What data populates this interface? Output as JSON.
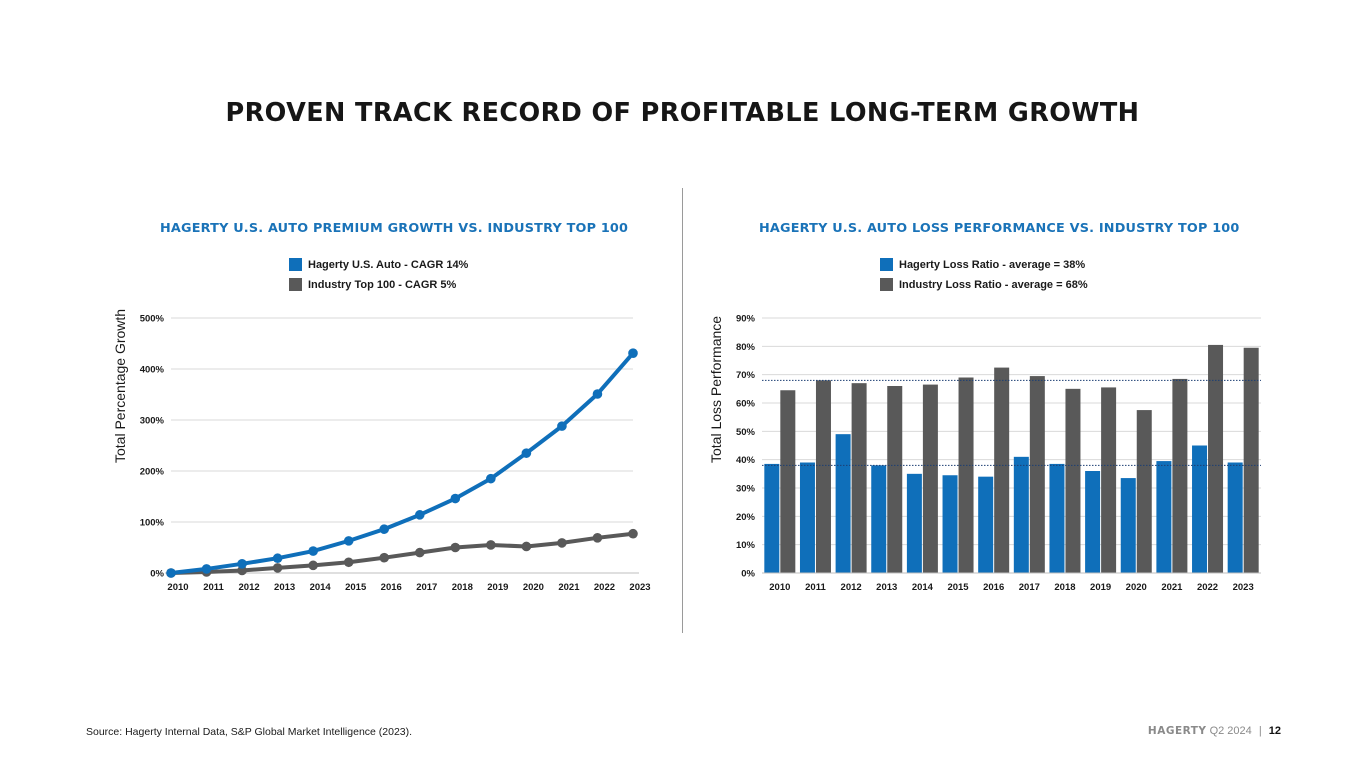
{
  "page": {
    "title": "PROVEN TRACK RECORD OF PROFITABLE LONG-TERM GROWTH",
    "source": "Source: Hagerty Internal Data, S&P Global Market Intelligence (2023).",
    "footer": {
      "brand": "HAGERTY",
      "period": "Q2 2024",
      "separator": "|",
      "page_number": "12"
    }
  },
  "colors": {
    "blue": "#0f6fba",
    "gray": "#595959",
    "title_blue": "#1a73b8",
    "grid": "#d9d9d9",
    "avg_line": "#1d3f73"
  },
  "chart_data": [
    {
      "type": "line",
      "title": "HAGERTY U.S. AUTO PREMIUM GROWTH VS. INDUSTRY TOP 100",
      "ylabel": "Total Percentage Growth",
      "xlabel": "",
      "x": [
        "2010",
        "2011",
        "2012",
        "2013",
        "2014",
        "2015",
        "2016",
        "2017",
        "2018",
        "2019",
        "2020",
        "2021",
        "2022",
        "2023"
      ],
      "ylim": [
        0,
        500
      ],
      "yticks": [
        0,
        100,
        200,
        300,
        400,
        500
      ],
      "ytick_labels": [
        "0%",
        "100%",
        "200%",
        "300%",
        "400%",
        "500%"
      ],
      "grid": true,
      "legend_position": "top-center",
      "series": [
        {
          "name": "Hagerty U.S. Auto - CAGR 14%",
          "color": "#0f6fba",
          "values": [
            0,
            8,
            18,
            29,
            43,
            63,
            86,
            114,
            146,
            185,
            235,
            288,
            351,
            431
          ]
        },
        {
          "name": "Industry Top 100 - CAGR 5%",
          "color": "#595959",
          "values": [
            0,
            2,
            5,
            10,
            15,
            21,
            30,
            40,
            50,
            55,
            52,
            59,
            69,
            77
          ]
        }
      ]
    },
    {
      "type": "bar",
      "title": "HAGERTY U.S. AUTO LOSS PERFORMANCE VS. INDUSTRY TOP 100",
      "ylabel": "Total Loss Performance",
      "xlabel": "",
      "categories": [
        "2010",
        "2011",
        "2012",
        "2013",
        "2014",
        "2015",
        "2016",
        "2017",
        "2018",
        "2019",
        "2020",
        "2021",
        "2022",
        "2023"
      ],
      "ylim": [
        0,
        90
      ],
      "yticks": [
        0,
        10,
        20,
        30,
        40,
        50,
        60,
        70,
        80,
        90
      ],
      "ytick_labels": [
        "0%",
        "10%",
        "20%",
        "30%",
        "40%",
        "50%",
        "60%",
        "70%",
        "80%",
        "90%"
      ],
      "grid": true,
      "legend_position": "top-center",
      "averages": [
        38,
        68
      ],
      "series": [
        {
          "name": "Hagerty Loss Ratio - average = 38%",
          "color": "#0f6fba",
          "values": [
            38.5,
            39,
            49,
            38,
            35,
            34.5,
            34,
            41,
            38.5,
            36,
            33.5,
            39.5,
            45,
            39
          ]
        },
        {
          "name": "Industry Loss Ratio - average = 68%",
          "color": "#595959",
          "values": [
            64.5,
            68,
            67,
            66,
            66.5,
            69,
            72.5,
            69.5,
            65,
            65.5,
            57.5,
            68.5,
            80.5,
            79.5
          ]
        }
      ]
    }
  ]
}
